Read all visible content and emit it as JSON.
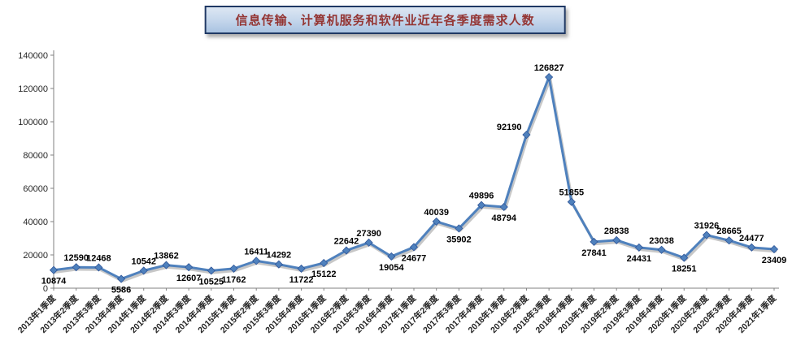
{
  "chart_data": {
    "type": "line",
    "title": "信息传输、计算机服务和软件业近年各季度需求人数",
    "categories": [
      "2013年1季度",
      "2013年2季度",
      "2013年3季度",
      "2013年4季度",
      "2014年1季度",
      "2014年2季度",
      "2014年3季度",
      "2014年4季度",
      "2015年1季度",
      "2015年2季度",
      "2015年3季度",
      "2015年4季度",
      "2016年1季度",
      "2016年2季度",
      "2016年3季度",
      "2016年4季度",
      "2017年1季度",
      "2017年2季度",
      "2017年3季度",
      "2017年4季度",
      "2018年1季度",
      "2018年2季度",
      "2018年3季度",
      "2018年4季度",
      "2019年1季度",
      "2019年2季度",
      "2019年3季度",
      "2019年4季度",
      "2020年1季度",
      "2020年2季度",
      "2020年3季度",
      "2020年4季度",
      "2021年1季度"
    ],
    "values": [
      10874,
      12590,
      12468,
      5586,
      10542,
      13862,
      12607,
      10525,
      11762,
      16411,
      14292,
      11722,
      15122,
      22642,
      27390,
      19054,
      24677,
      40039,
      35902,
      49896,
      48794,
      92190,
      126827,
      51855,
      27841,
      28838,
      24431,
      23038,
      18251,
      31926,
      28665,
      24477,
      23409
    ],
    "label_positions": [
      "below",
      "above",
      "above",
      "below",
      "above",
      "above",
      "below",
      "below",
      "below",
      "above",
      "above",
      "below",
      "below",
      "above",
      "above",
      "below",
      "below",
      "above",
      "below",
      "above",
      "below",
      "above-left",
      "above",
      "above",
      "below",
      "above",
      "below",
      "above",
      "below",
      "above",
      "above",
      "above",
      "below"
    ],
    "xlabel": "",
    "ylabel": "",
    "ylim": [
      0,
      140000
    ],
    "yticks": [
      0,
      20000,
      40000,
      60000,
      80000,
      100000,
      120000,
      140000
    ],
    "grid": false,
    "legend": "none",
    "marker": "diamond"
  },
  "colors": {
    "line": "#4f81bd",
    "marker": "#4f81bd",
    "marker_edge": "#2f5597",
    "title_text": "#943634",
    "title_border": "#1f3864",
    "axis": "#808080",
    "tick_text": "#262626",
    "label_text": "#000000"
  }
}
